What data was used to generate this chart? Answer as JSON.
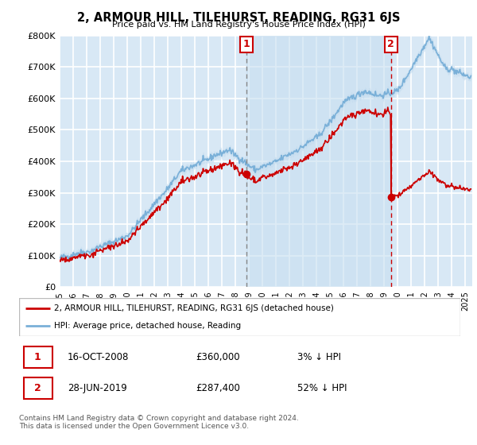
{
  "title": "2, ARMOUR HILL, TILEHURST, READING, RG31 6JS",
  "subtitle": "Price paid vs. HM Land Registry's House Price Index (HPI)",
  "ylim": [
    0,
    800000
  ],
  "xlim_start": 1995.0,
  "xlim_end": 2025.5,
  "bg_color": "#d8e8f5",
  "grid_color": "#ffffff",
  "hpi_color": "#7ab0d8",
  "hpi_fill_color": "#c5ddf0",
  "sale_color": "#cc0000",
  "transaction1": {
    "date_num": 2008.79,
    "price": 360000,
    "label": "1",
    "hpi_pct": "3% ↓ HPI",
    "date_str": "16-OCT-2008"
  },
  "transaction2": {
    "date_num": 2019.49,
    "price": 287400,
    "label": "2",
    "hpi_pct": "52% ↓ HPI",
    "date_str": "28-JUN-2019"
  },
  "legend_label1": "2, ARMOUR HILL, TILEHURST, READING, RG31 6JS (detached house)",
  "legend_label2": "HPI: Average price, detached house, Reading",
  "footnote": "Contains HM Land Registry data © Crown copyright and database right 2024.\nThis data is licensed under the Open Government Licence v3.0.",
  "table_rows": [
    {
      "num": "1",
      "date": "16-OCT-2008",
      "price": "£360,000",
      "hpi": "3% ↓ HPI"
    },
    {
      "num": "2",
      "date": "28-JUN-2019",
      "price": "£287,400",
      "hpi": "52% ↓ HPI"
    }
  ]
}
